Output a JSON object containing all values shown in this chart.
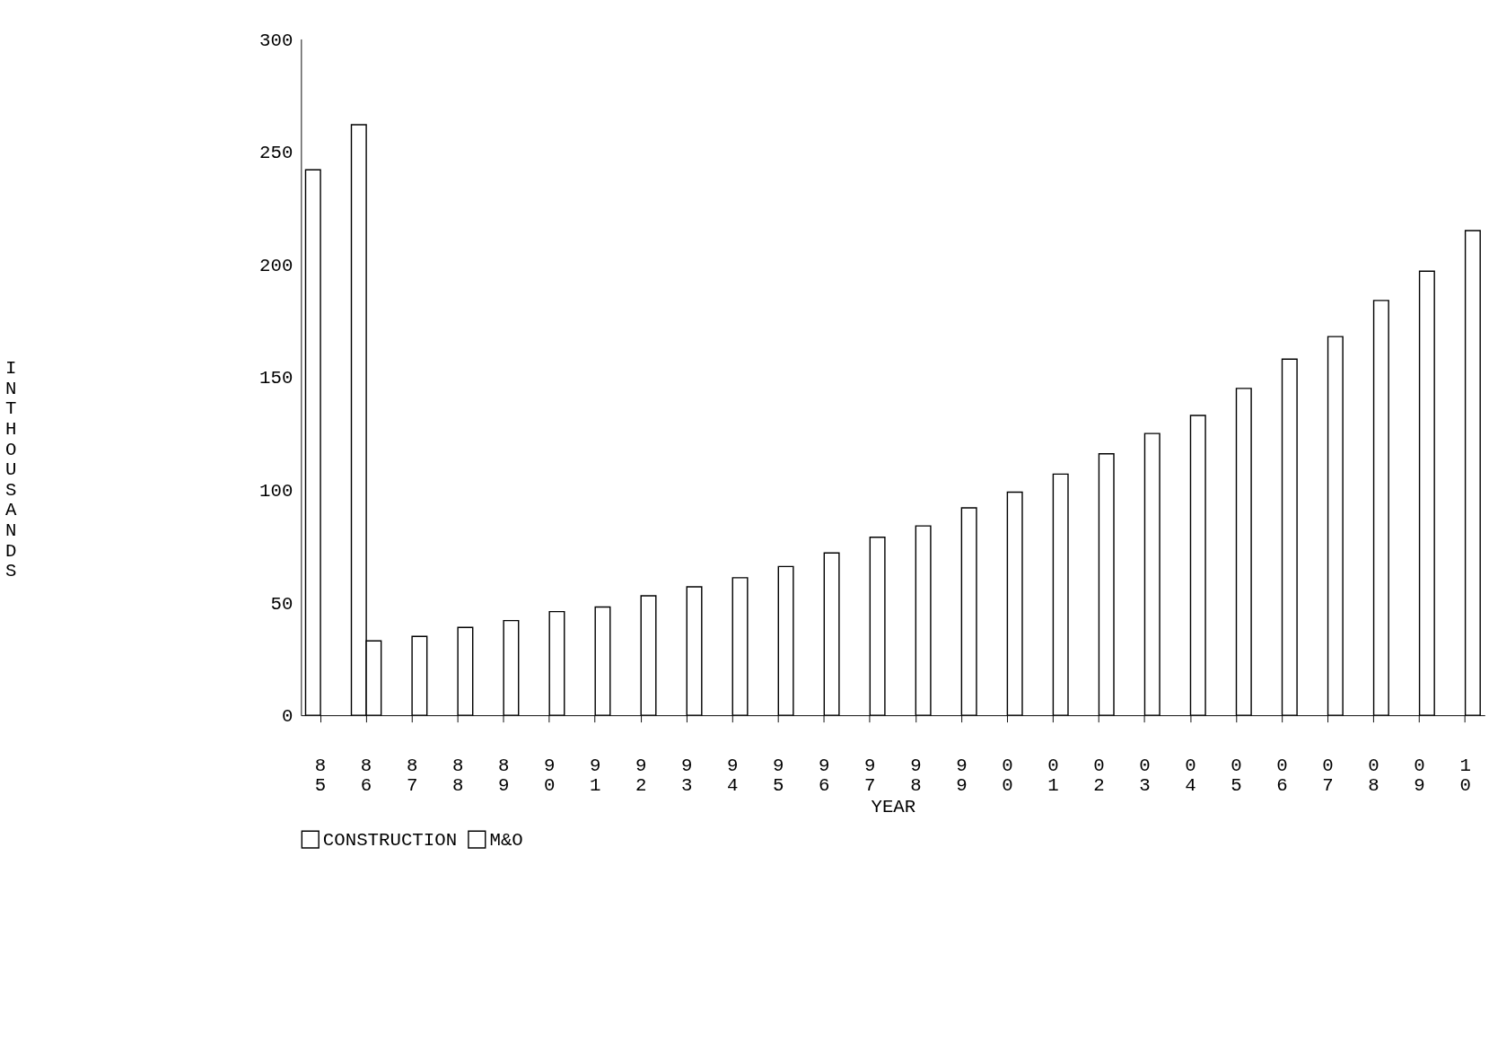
{
  "chart_data": {
    "type": "bar",
    "xlabel": "YEAR",
    "ylabel": "IN THOUSANDS",
    "categories": [
      "85",
      "86",
      "87",
      "88",
      "89",
      "90",
      "91",
      "92",
      "93",
      "94",
      "95",
      "96",
      "97",
      "98",
      "99",
      "00",
      "01",
      "02",
      "03",
      "04",
      "05",
      "06",
      "07",
      "08",
      "09",
      "10"
    ],
    "series": [
      {
        "name": "CONSTRUCTION",
        "color": "#ffffff",
        "values": [
          242,
          262,
          null,
          null,
          null,
          null,
          null,
          null,
          null,
          null,
          null,
          null,
          null,
          null,
          null,
          null,
          null,
          null,
          null,
          null,
          null,
          null,
          null,
          null,
          null,
          null
        ]
      },
      {
        "name": "M&O",
        "color": "#ffffff",
        "values": [
          null,
          33,
          35,
          39,
          42,
          46,
          48,
          53,
          57,
          61,
          66,
          72,
          79,
          84,
          92,
          99,
          107,
          116,
          125,
          133,
          145,
          158,
          168,
          184,
          197,
          215
        ]
      }
    ],
    "ylim": [
      0,
      300
    ],
    "yticks": [
      0,
      50,
      100,
      150,
      200,
      250,
      300
    ],
    "grid": false,
    "legend": "bottom"
  }
}
